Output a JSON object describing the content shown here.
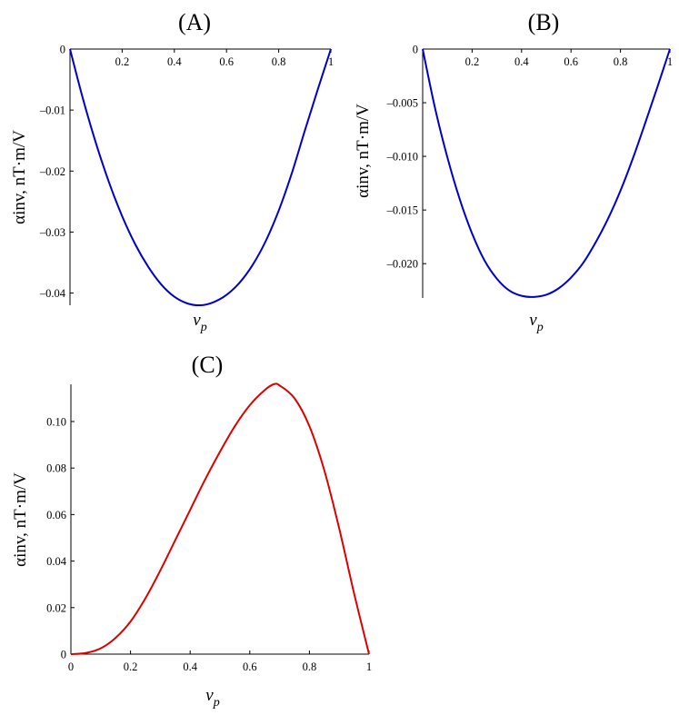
{
  "chart_data": [
    {
      "panel": "A",
      "type": "line",
      "title": "(A)",
      "xlabel": "v_p",
      "xlabel_main": "v",
      "xlabel_sub": "p",
      "ylabel": "αinv, nT·m/V",
      "xlim": [
        0,
        1
      ],
      "ylim": [
        -0.042,
        0
      ],
      "x_ticks": [
        "0.2",
        "0.4",
        "0.6",
        "0.8",
        "1"
      ],
      "y_ticks": [
        "0",
        "–0.01",
        "–0.02",
        "–0.03",
        "–0.04"
      ],
      "y_tick_values": [
        0,
        -0.01,
        -0.02,
        -0.03,
        -0.04
      ],
      "x_tick_values": [
        0.2,
        0.4,
        0.6,
        0.8,
        1
      ],
      "color": "#0000cc",
      "series": [
        {
          "x": [
            0,
            0.05,
            0.1,
            0.15,
            0.2,
            0.25,
            0.3,
            0.35,
            0.4,
            0.45,
            0.5,
            0.55,
            0.6,
            0.65,
            0.7,
            0.75,
            0.8,
            0.85,
            0.9,
            0.95,
            1
          ],
          "y": [
            0,
            -0.0082,
            -0.0155,
            -0.0219,
            -0.0274,
            -0.032,
            -0.0357,
            -0.0386,
            -0.0406,
            -0.0417,
            -0.042,
            -0.0415,
            -0.0403,
            -0.0383,
            -0.0354,
            -0.0315,
            -0.0265,
            -0.0204,
            -0.0134,
            -0.0066,
            0
          ]
        }
      ]
    },
    {
      "panel": "B",
      "type": "line",
      "title": "(B)",
      "xlabel": "v_p",
      "xlabel_main": "v",
      "xlabel_sub": "p",
      "ylabel": "αinv, nT·m/V",
      "xlim": [
        0,
        1
      ],
      "ylim": [
        -0.0232,
        0
      ],
      "x_ticks": [
        "0.2",
        "0.4",
        "0.6",
        "0.8",
        "1"
      ],
      "y_ticks": [
        "0",
        "–0.005",
        "–0.010",
        "–0.015",
        "–0.020"
      ],
      "y_tick_values": [
        0,
        -0.005,
        -0.01,
        -0.015,
        -0.02
      ],
      "x_tick_values": [
        0.2,
        0.4,
        0.6,
        0.8,
        1
      ],
      "color": "#0000cc",
      "series": [
        {
          "x": [
            0,
            0.05,
            0.1,
            0.15,
            0.2,
            0.25,
            0.3,
            0.35,
            0.4,
            0.45,
            0.5,
            0.55,
            0.6,
            0.65,
            0.7,
            0.75,
            0.8,
            0.85,
            0.9,
            0.95,
            1
          ],
          "y": [
            0,
            -0.0055,
            -0.0101,
            -0.014,
            -0.0172,
            -0.0197,
            -0.0214,
            -0.0225,
            -0.023,
            -0.0231,
            -0.0229,
            -0.0223,
            -0.0213,
            -0.0199,
            -0.018,
            -0.0158,
            -0.0132,
            -0.0102,
            -0.0069,
            -0.0035,
            0
          ]
        }
      ]
    },
    {
      "panel": "C",
      "type": "line",
      "title": "(C)",
      "xlabel": "v_p",
      "xlabel_main": "v",
      "xlabel_sub": "p",
      "ylabel": "αinv, nT·m/V",
      "xlim": [
        0,
        1
      ],
      "ylim": [
        0,
        0.116
      ],
      "x_ticks": [
        "0",
        "0.2",
        "0.4",
        "0.6",
        "0.8",
        "1"
      ],
      "y_ticks": [
        "0",
        "0.02",
        "0.04",
        "0.06",
        "0.08",
        "0.10"
      ],
      "y_tick_values": [
        0,
        0.02,
        0.04,
        0.06,
        0.08,
        0.1
      ],
      "x_tick_values": [
        0,
        0.2,
        0.4,
        0.6,
        0.8,
        1
      ],
      "color": "#dd0000",
      "series": [
        {
          "x": [
            0,
            0.05,
            0.1,
            0.15,
            0.2,
            0.25,
            0.3,
            0.35,
            0.4,
            0.45,
            0.5,
            0.55,
            0.6,
            0.65,
            0.68,
            0.7,
            0.75,
            0.8,
            0.85,
            0.9,
            0.95,
            1
          ],
          "y": [
            0,
            0.0005,
            0.0025,
            0.007,
            0.014,
            0.024,
            0.036,
            0.049,
            0.062,
            0.075,
            0.087,
            0.098,
            0.107,
            0.1135,
            0.116,
            0.1155,
            0.11,
            0.098,
            0.079,
            0.054,
            0.026,
            0
          ]
        }
      ]
    }
  ]
}
